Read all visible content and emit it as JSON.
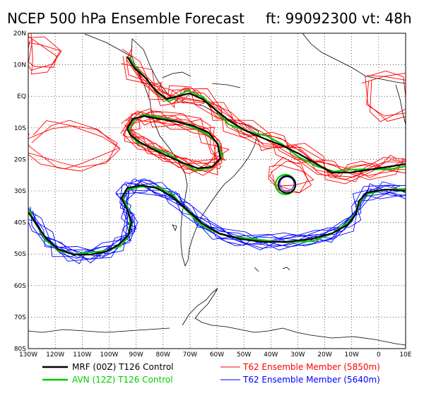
{
  "title": {
    "main": "NCEP 500 hPa Ensemble Forecast",
    "times": "ft: 99092300 vt: 48h"
  },
  "map": {
    "projection": "cylindrical equidistant",
    "lon_range": [
      -130,
      10
    ],
    "lat_range": [
      -80,
      20
    ],
    "lat_labels": [
      "20N",
      "10N",
      "EQ",
      "10S",
      "20S",
      "30S",
      "40S",
      "50S",
      "60S",
      "70S",
      "80S"
    ],
    "lon_labels": [
      "130W",
      "120W",
      "110W",
      "100W",
      "90W",
      "80W",
      "70W",
      "60W",
      "50W",
      "40W",
      "30W",
      "20W",
      "10W",
      "0",
      "10E"
    ],
    "grid": "dotted",
    "colors": {
      "mrf": "#000000",
      "avn": "#00cc00",
      "ens5850": "#ff0000",
      "ens5640": "#0000ff",
      "coast": "#000000"
    }
  },
  "legend": {
    "mrf": "MRF (00Z) T126 Control",
    "avn": "AVN (12Z) T126 Control",
    "ens5850": "T62 Ensemble Member (5850m)",
    "ens5640": "T62 Ensemble Member (5640m)"
  }
}
